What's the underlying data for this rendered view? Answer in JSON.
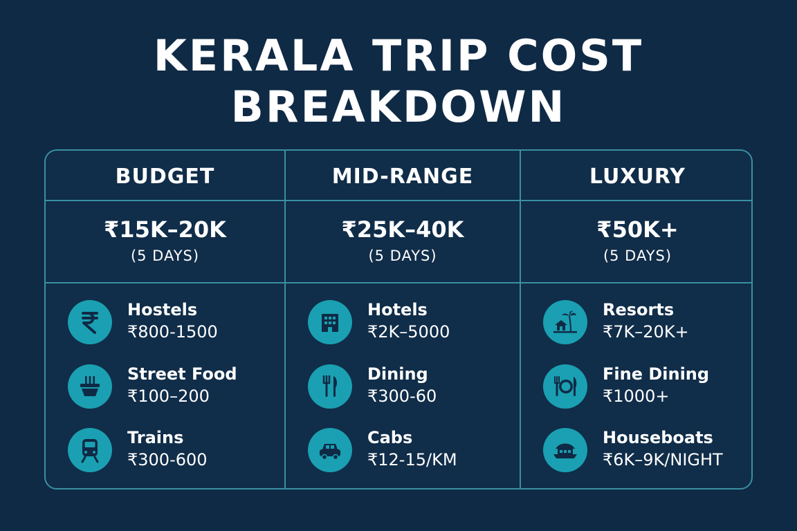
{
  "title": {
    "line1": "KERALA TRIP COST",
    "line2": "BREAKDOWN"
  },
  "colors": {
    "background": "#0f2a45",
    "border": "#3a8fa3",
    "icon_circle": "#1aa0b2",
    "icon_glyph": "#0f2a45",
    "text": "#ffffff"
  },
  "tiers": [
    {
      "name": "BUDGET",
      "price": "₹15K–20K",
      "duration": "(5 DAYS)",
      "items": [
        {
          "icon": "rupee-icon",
          "name": "Hostels",
          "price": "₹800-1500"
        },
        {
          "icon": "street-food-icon",
          "name": "Street Food",
          "price": "₹100–200"
        },
        {
          "icon": "train-icon",
          "name": "Trains",
          "price": "₹300-600"
        }
      ]
    },
    {
      "name": "MID-RANGE",
      "price": "₹25K–40K",
      "duration": "(5 DAYS)",
      "items": [
        {
          "icon": "hotel-icon",
          "name": "Hotels",
          "price": "₹2K–5000"
        },
        {
          "icon": "cutlery-icon",
          "name": "Dining",
          "price": "₹300-60"
        },
        {
          "icon": "car-icon",
          "name": "Cabs",
          "price": "₹12-15/KM"
        }
      ]
    },
    {
      "name": "LUXURY",
      "price": "₹50K+",
      "duration": "(5 DAYS)",
      "items": [
        {
          "icon": "resort-palm-icon",
          "name": "Resorts",
          "price": "₹7K–20K+"
        },
        {
          "icon": "fine-dining-plate-icon",
          "name": "Fine Dining",
          "price": "₹1000+"
        },
        {
          "icon": "houseboat-icon",
          "name": "Houseboats",
          "price": "₹6K–9K/NIGHT"
        }
      ]
    }
  ]
}
